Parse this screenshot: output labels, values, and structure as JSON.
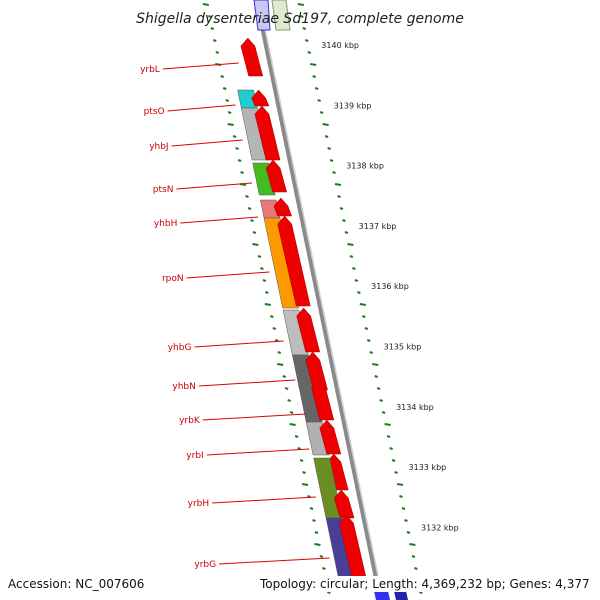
{
  "title": "Shigella dysenteriae Sd197, complete genome",
  "footer": {
    "accession": "Accession: NC_007606",
    "summary": "Topology: circular; Length: 4,369,232 bp; Genes: 4,377"
  },
  "colors": {
    "forward_gene": "#ee0000",
    "label_text": "#cc0000",
    "leader_line": "#dd0000",
    "tick": "#1d7d1d",
    "backbone": "#8a8a8a"
  },
  "genes": [
    {
      "name": "yrbL",
      "color": "#ee0000",
      "strand": "forward"
    },
    {
      "name": "ptsO",
      "color": "#22cccc",
      "strand": "reverse"
    },
    {
      "name": "yhbJ",
      "color": "#b5b5b5",
      "strand": "reverse"
    },
    {
      "name": "ptsN",
      "color": "#44bb22",
      "strand": "reverse"
    },
    {
      "name": "yhbH",
      "color": "#e87878",
      "strand": "reverse"
    },
    {
      "name": "rpoN",
      "color": "#ff9900",
      "strand": "reverse"
    },
    {
      "name": "yhbG",
      "color": "#bdbdbd",
      "strand": "reverse"
    },
    {
      "name": "yhbN",
      "color": "#666666",
      "strand": "reverse"
    },
    {
      "name": "yrbK",
      "color": "#b0b0b0",
      "strand": "reverse"
    },
    {
      "name": "yrbI",
      "color": "#c4c4c4",
      "strand": "reverse"
    },
    {
      "name": "yrbH",
      "color": "#6b8e23",
      "strand": "reverse"
    },
    {
      "name": "yrbG",
      "color": "#4a3f96",
      "strand": "reverse"
    }
  ],
  "scale_labels": [
    "3140 kbp",
    "3139 kbp",
    "3138 kbp",
    "3137 kbp",
    "3136 kbp",
    "3135 kbp",
    "3134 kbp",
    "3133 kbp",
    "3132 kbp"
  ]
}
